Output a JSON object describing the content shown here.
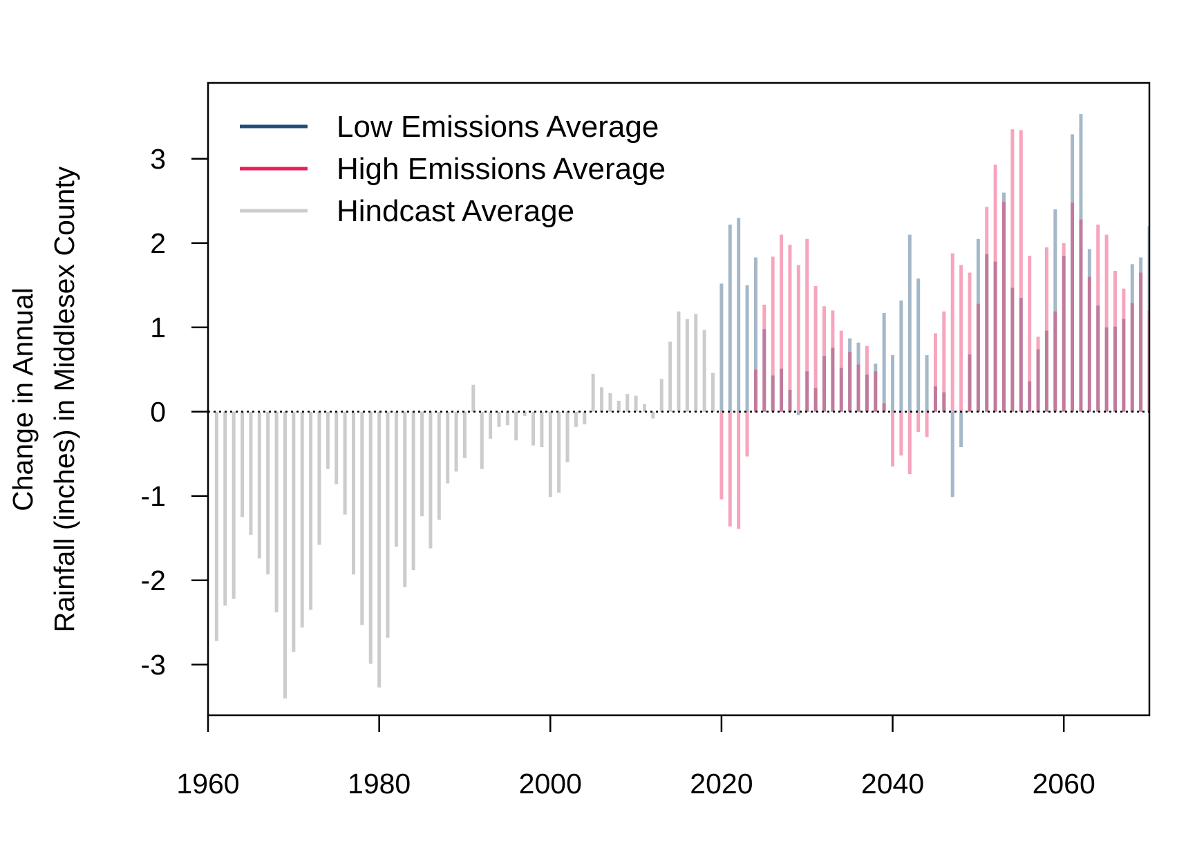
{
  "chart_data": {
    "type": "bar",
    "title": "",
    "xlabel": "",
    "ylabel_lines": [
      "Change in Annual",
      "Rainfall (inches) in Middlesex County"
    ],
    "xlim": [
      1960,
      2070
    ],
    "ylim": [
      -3.6,
      3.9
    ],
    "x_ticks": [
      1960,
      1980,
      2000,
      2020,
      2040,
      2060
    ],
    "y_ticks": [
      -3,
      -2,
      -1,
      0,
      1,
      2,
      3
    ],
    "grid": false,
    "reference_line": {
      "y": 0,
      "style": "dotted"
    },
    "legend_position": "top-left",
    "series": [
      {
        "name": "Hindcast Average",
        "color": "#cccccc",
        "x": [
          1961,
          1962,
          1963,
          1964,
          1965,
          1966,
          1967,
          1968,
          1969,
          1970,
          1971,
          1972,
          1973,
          1974,
          1975,
          1976,
          1977,
          1978,
          1979,
          1980,
          1981,
          1982,
          1983,
          1984,
          1985,
          1986,
          1987,
          1988,
          1989,
          1990,
          1991,
          1992,
          1993,
          1994,
          1995,
          1996,
          1997,
          1998,
          1999,
          2000,
          2001,
          2002,
          2003,
          2004,
          2005,
          2006,
          2007,
          2008,
          2009,
          2010,
          2011,
          2012,
          2013,
          2014,
          2015,
          2016,
          2017,
          2018,
          2019
        ],
        "values": [
          -2.72,
          -2.3,
          -2.22,
          -1.25,
          -1.46,
          -1.74,
          -1.93,
          -2.38,
          -3.4,
          -2.85,
          -2.56,
          -2.35,
          -1.58,
          -0.68,
          -0.86,
          -1.22,
          -1.93,
          -2.53,
          -2.99,
          -3.27,
          -2.68,
          -1.6,
          -2.08,
          -1.88,
          -1.24,
          -1.62,
          -1.28,
          -0.85,
          -0.71,
          -0.55,
          0.32,
          -0.68,
          -0.32,
          -0.18,
          -0.16,
          -0.34,
          -0.05,
          -0.4,
          -0.42,
          -1.01,
          -0.96,
          -0.6,
          -0.18,
          -0.15,
          0.45,
          0.29,
          0.22,
          0.13,
          0.21,
          0.19,
          0.09,
          -0.08,
          0.39,
          0.83,
          1.19,
          1.1,
          1.16,
          0.97,
          0.46
        ]
      },
      {
        "name": "Low Emissions Average",
        "color": "#1f4e79",
        "display_color": "#a2bcd3",
        "x": [
          2020,
          2021,
          2022,
          2023,
          2024,
          2025,
          2026,
          2027,
          2028,
          2029,
          2030,
          2031,
          2032,
          2033,
          2034,
          2035,
          2036,
          2037,
          2038,
          2039,
          2040,
          2041,
          2042,
          2043,
          2044,
          2045,
          2046,
          2047,
          2048,
          2049,
          2050,
          2051,
          2052,
          2053,
          2054,
          2055,
          2056,
          2057,
          2058,
          2059,
          2060,
          2061,
          2062,
          2063,
          2064,
          2065,
          2066,
          2067,
          2068,
          2069,
          2070
        ],
        "values": [
          1.52,
          2.22,
          2.3,
          1.5,
          1.83,
          0.98,
          0.43,
          0.51,
          0.26,
          -0.04,
          0.48,
          0.28,
          0.66,
          0.76,
          0.52,
          0.87,
          0.82,
          0.44,
          0.57,
          1.17,
          0.67,
          1.32,
          2.1,
          1.58,
          0.67,
          0.3,
          0.23,
          -1.01,
          -0.42,
          0.68,
          2.05,
          1.87,
          1.78,
          2.6,
          1.47,
          1.35,
          0.36,
          0.74,
          0.96,
          2.4,
          1.85,
          3.29,
          3.53,
          1.93,
          1.26,
          1.0,
          1.01,
          1.1,
          1.75,
          1.83,
          2.2
        ]
      },
      {
        "name": "High Emissions Average",
        "color": "#e81f5b",
        "display_color": "#f7a4bb",
        "x": [
          2020,
          2021,
          2022,
          2023,
          2024,
          2025,
          2026,
          2027,
          2028,
          2029,
          2030,
          2031,
          2032,
          2033,
          2034,
          2035,
          2036,
          2037,
          2038,
          2039,
          2040,
          2041,
          2042,
          2043,
          2044,
          2045,
          2046,
          2047,
          2048,
          2049,
          2050,
          2051,
          2052,
          2053,
          2054,
          2055,
          2056,
          2057,
          2058,
          2059,
          2060,
          2061,
          2062,
          2063,
          2064,
          2065,
          2066,
          2067,
          2068,
          2069,
          2070
        ],
        "values": [
          -1.04,
          -1.36,
          -1.39,
          -0.53,
          0.5,
          1.27,
          1.84,
          2.1,
          1.98,
          1.74,
          2.05,
          1.49,
          1.25,
          1.2,
          0.96,
          0.71,
          0.56,
          0.78,
          0.48,
          0.1,
          -0.65,
          -0.52,
          -0.74,
          -0.24,
          -0.3,
          0.93,
          1.19,
          1.88,
          1.74,
          1.65,
          1.28,
          2.43,
          2.93,
          2.49,
          3.35,
          3.34,
          1.85,
          0.89,
          1.95,
          1.19,
          2.0,
          2.48,
          2.28,
          1.6,
          2.22,
          2.1,
          1.67,
          1.46,
          1.29,
          1.65,
          1.2
        ]
      }
    ]
  }
}
